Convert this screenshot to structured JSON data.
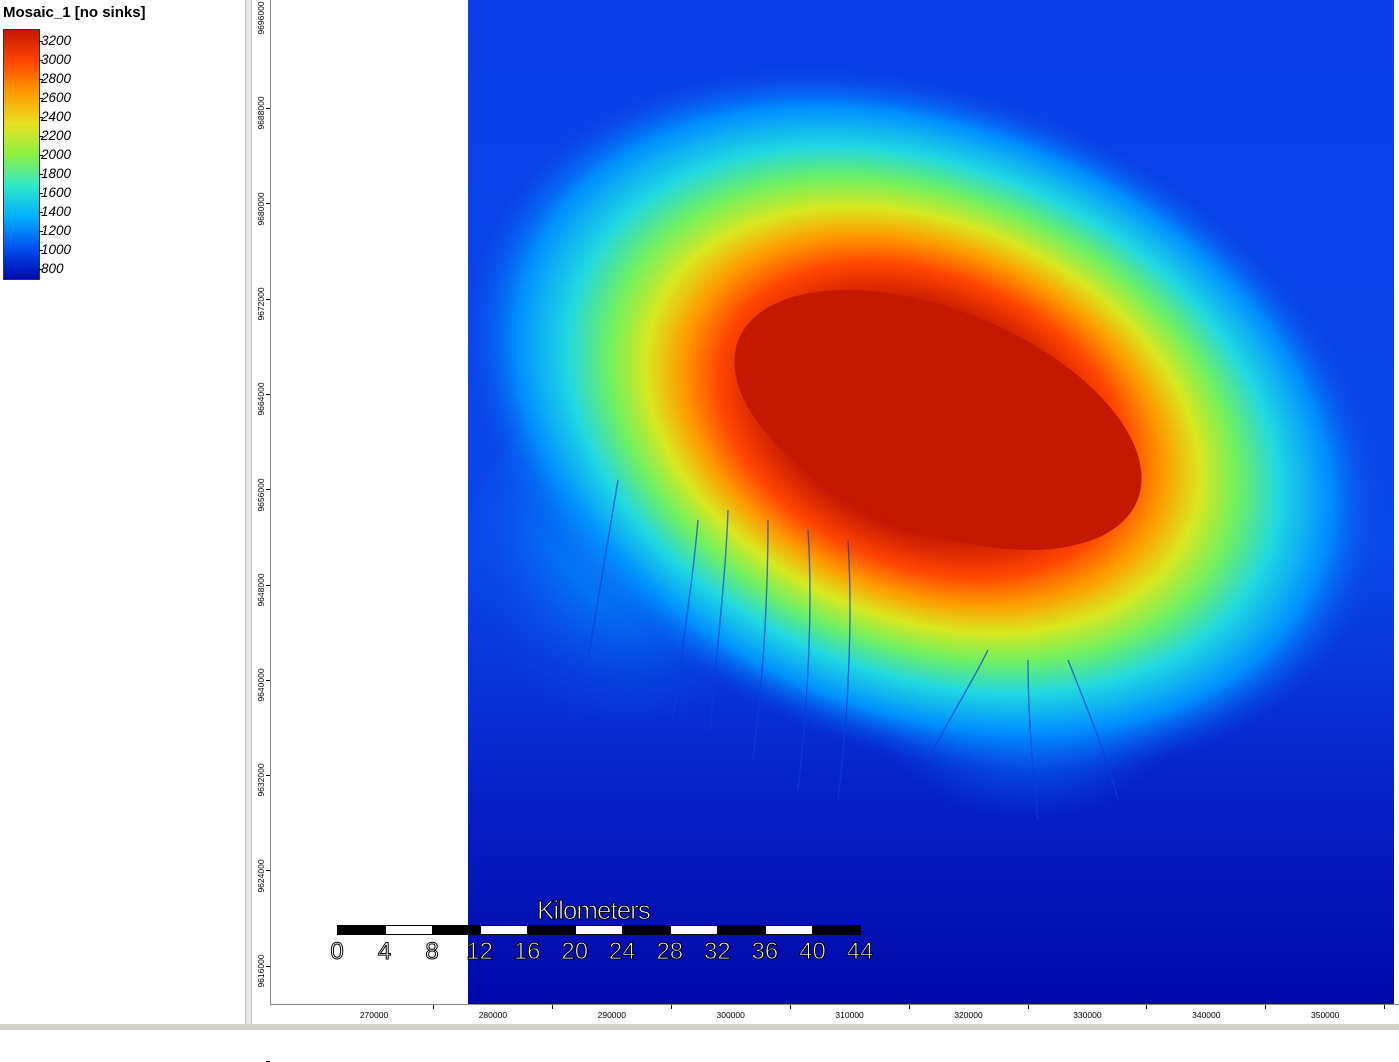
{
  "legend": {
    "title": "Mosaic_1 [no sinks]",
    "labels": [
      "3200",
      "3000",
      "2800",
      "2600",
      "2400",
      "2200",
      "2000",
      "1800",
      "1600",
      "1400",
      "1200",
      "1000",
      "800"
    ],
    "colors": [
      "#c41800",
      "#ff4500",
      "#ff9a00",
      "#e8e020",
      "#8cf040",
      "#30e8c8",
      "#00b0ff",
      "#0050f0",
      "#0008b0"
    ]
  },
  "map": {
    "y_axis_labels": [
      "9696000",
      "9688000",
      "9680000",
      "9672000",
      "9664000",
      "9656000",
      "9648000",
      "9640000",
      "9632000",
      "9624000",
      "9616000"
    ],
    "x_axis_labels": [
      "270000",
      "280000",
      "290000",
      "300000",
      "310000",
      "320000",
      "330000",
      "340000",
      "350000"
    ]
  },
  "scalebar": {
    "title": "Kilometers",
    "labels": [
      "0",
      "4",
      "8",
      "12",
      "16",
      "20",
      "24",
      "28",
      "32",
      "36",
      "40",
      "44"
    ]
  }
}
